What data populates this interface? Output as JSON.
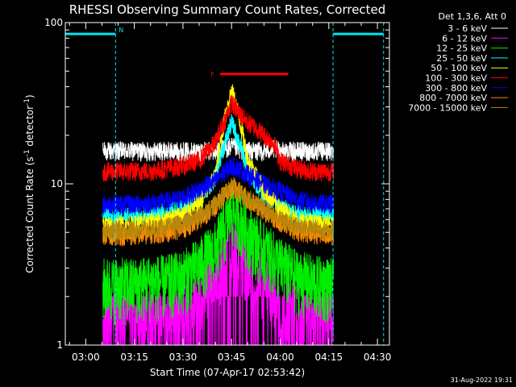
{
  "chart_data": {
    "type": "line",
    "title": "RHESSI Observing Summary Count Rates, Corrected",
    "xlabel": "Start Time (07-Apr-17 02:53:42)",
    "ylabel_prefix": "Corrected Count Rate (s",
    "ylabel_sup1": "-1",
    "ylabel_mid": " detector",
    "ylabel_sup2": "-1",
    "ylabel_suffix": ")",
    "yscale": "log",
    "ylim": [
      1,
      100
    ],
    "xlim_minutes": [
      53.7,
      153.7
    ],
    "x_unit": "minutes after 02:00 UT",
    "x_ticks": [
      {
        "value": 60,
        "label": "03:00"
      },
      {
        "value": 75,
        "label": "03:15"
      },
      {
        "value": 90,
        "label": "03:30"
      },
      {
        "value": 105,
        "label": "03:45"
      },
      {
        "value": 120,
        "label": "04:00"
      },
      {
        "value": 135,
        "label": "04:15"
      },
      {
        "value": 150,
        "label": "04:30"
      }
    ],
    "y_ticks": [
      {
        "value": 100,
        "label": "100"
      },
      {
        "value": 10,
        "label": "10"
      },
      {
        "value": 1,
        "label": "1"
      }
    ],
    "legend_header": "Det 1,3,6, Att 0",
    "annotations": {
      "night_label": "N",
      "flare_label": "F",
      "night_color": "#00e5ee",
      "flare_color": "#ff0000",
      "night_intervals": [
        [
          53.7,
          69.2
        ],
        [
          136.3,
          151.9
        ]
      ],
      "night_level": 85,
      "flare_interval": [
        101.5,
        122.5
      ],
      "flare_level": 48
    },
    "footer_date": "31-Aug-2022 19:31",
    "series": [
      {
        "name": "3 - 6 keV",
        "color": "#ffffff",
        "x": [
          65.3,
          70,
          75,
          80,
          85,
          90,
          95,
          100,
          103,
          105,
          107,
          110,
          115,
          118,
          120,
          125,
          130,
          136.5
        ],
        "y": [
          16,
          16,
          16,
          16,
          16,
          16,
          16,
          16,
          16.5,
          17,
          16.5,
          16,
          16,
          16.5,
          16,
          16,
          16,
          16
        ]
      },
      {
        "name": "6 - 12 keV",
        "color": "#ff00ff",
        "x": [
          65.3,
          70,
          75,
          80,
          85,
          90,
          95,
          100,
          103,
          105,
          107,
          110,
          115,
          120,
          125,
          130,
          136.5
        ],
        "y": [
          1.5,
          1.5,
          1.5,
          1.5,
          1.5,
          1.6,
          2.0,
          2.5,
          3.5,
          4.5,
          4.0,
          3.0,
          2.5,
          2.0,
          1.6,
          1.5,
          1.5
        ]
      },
      {
        "name": "12 - 25 keV",
        "color": "#00ee00",
        "x": [
          65.3,
          70,
          75,
          80,
          85,
          90,
          95,
          100,
          103,
          105,
          107,
          110,
          115,
          120,
          125,
          130,
          136.5
        ],
        "y": [
          2.4,
          2.4,
          2.4,
          2.5,
          2.5,
          2.7,
          3.2,
          4.0,
          5.5,
          7.0,
          6.5,
          5.0,
          4.0,
          3.2,
          2.7,
          2.5,
          2.4
        ]
      },
      {
        "name": "25 - 50 keV",
        "color": "#00ffff",
        "x": [
          65.3,
          70,
          75,
          80,
          85,
          90,
          95,
          100,
          103,
          105,
          107,
          110,
          115,
          120,
          125,
          130,
          136.5
        ],
        "y": [
          6.3,
          6.3,
          6.3,
          6.5,
          6.7,
          7.0,
          8.0,
          11.0,
          18.0,
          24.0,
          19.0,
          12.0,
          8.5,
          7.2,
          6.6,
          6.4,
          6.3
        ]
      },
      {
        "name": "50 - 100 keV",
        "color": "#ffff00",
        "x": [
          65.3,
          70,
          75,
          80,
          85,
          90,
          95,
          100,
          102,
          104,
          105,
          106,
          108,
          110,
          115,
          120,
          125,
          130,
          136.5
        ],
        "y": [
          5.5,
          5.5,
          5.6,
          5.8,
          6.0,
          6.5,
          7.5,
          11.0,
          20.0,
          32.0,
          38.0,
          33.0,
          22.0,
          14.0,
          9.0,
          7.0,
          6.0,
          5.7,
          5.5
        ]
      },
      {
        "name": "100 - 300 keV",
        "color": "#ff0000",
        "x": [
          65.3,
          70,
          75,
          80,
          85,
          90,
          95,
          100,
          103,
          105,
          107,
          110,
          113,
          115,
          118,
          120,
          125,
          130,
          136.5
        ],
        "y": [
          12,
          12,
          12,
          12,
          12.5,
          13,
          14,
          18,
          25,
          32,
          28,
          24,
          22,
          20,
          18,
          14,
          12.5,
          12,
          12
        ]
      },
      {
        "name": "300 - 800 keV",
        "color": "#0000ff",
        "x": [
          65.3,
          70,
          75,
          80,
          85,
          90,
          95,
          100,
          103,
          105,
          107,
          110,
          115,
          120,
          125,
          130,
          136.5
        ],
        "y": [
          7.5,
          7.5,
          7.5,
          7.6,
          7.8,
          8.2,
          9.2,
          10.5,
          12.0,
          13.0,
          12.5,
          11.5,
          10.0,
          9.0,
          8.0,
          7.6,
          7.5
        ]
      },
      {
        "name": "800 - 7000 keV",
        "color": "#ff8c00",
        "x": [
          65.3,
          70,
          75,
          80,
          85,
          90,
          95,
          100,
          103,
          105,
          107,
          110,
          115,
          120,
          125,
          130,
          136.5
        ],
        "y": [
          4.8,
          4.8,
          4.8,
          4.9,
          5.0,
          5.3,
          6.0,
          7.2,
          8.5,
          9.5,
          9.0,
          8.0,
          6.8,
          5.8,
          5.1,
          4.9,
          4.8
        ]
      },
      {
        "name": "7000 - 15000 keV",
        "color": "#b8860b",
        "x": [
          65.3,
          70,
          75,
          80,
          85,
          90,
          95,
          100,
          103,
          105,
          107,
          110,
          115,
          120,
          125,
          130,
          136.5
        ],
        "y": [
          5.2,
          5.2,
          5.2,
          5.3,
          5.4,
          5.7,
          6.3,
          7.5,
          8.8,
          9.8,
          9.2,
          8.2,
          7.0,
          6.0,
          5.5,
          5.3,
          5.2
        ]
      }
    ]
  }
}
